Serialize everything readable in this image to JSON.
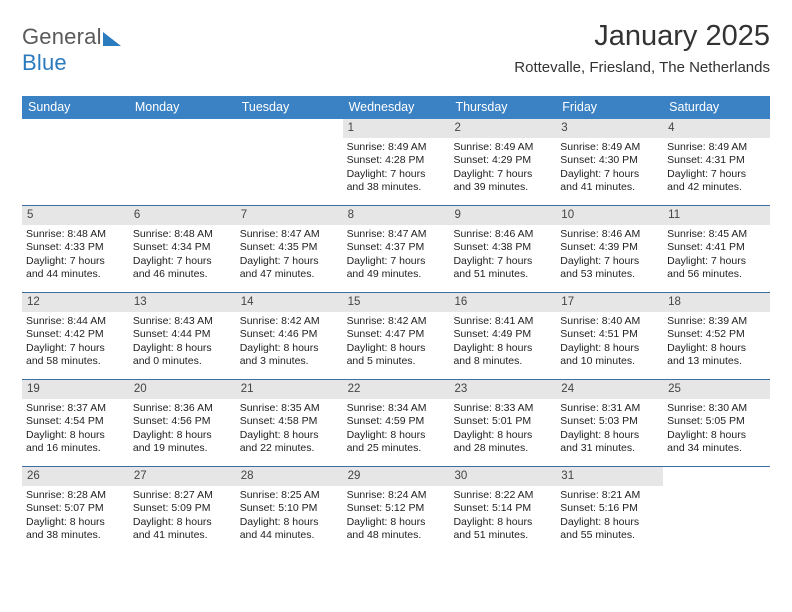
{
  "logo": {
    "part1": "General",
    "part2": "Blue"
  },
  "title": "January 2025",
  "location": "Rottevalle, Friesland, The Netherlands",
  "colors": {
    "header_bg": "#3b82c4",
    "header_text": "#ffffff",
    "daynum_bg": "#e6e6e6",
    "daynum_text": "#444444",
    "rule": "#3b6fa0",
    "body_text": "#222222",
    "logo_gray": "#5a5a5a",
    "logo_blue": "#2b7bbf"
  },
  "day_labels": [
    "Sunday",
    "Monday",
    "Tuesday",
    "Wednesday",
    "Thursday",
    "Friday",
    "Saturday"
  ],
  "first_weekday_index": 3,
  "days": [
    {
      "n": 1,
      "sunrise": "8:49 AM",
      "sunset": "4:28 PM",
      "dh": 7,
      "dm": 38
    },
    {
      "n": 2,
      "sunrise": "8:49 AM",
      "sunset": "4:29 PM",
      "dh": 7,
      "dm": 39
    },
    {
      "n": 3,
      "sunrise": "8:49 AM",
      "sunset": "4:30 PM",
      "dh": 7,
      "dm": 41
    },
    {
      "n": 4,
      "sunrise": "8:49 AM",
      "sunset": "4:31 PM",
      "dh": 7,
      "dm": 42
    },
    {
      "n": 5,
      "sunrise": "8:48 AM",
      "sunset": "4:33 PM",
      "dh": 7,
      "dm": 44
    },
    {
      "n": 6,
      "sunrise": "8:48 AM",
      "sunset": "4:34 PM",
      "dh": 7,
      "dm": 46
    },
    {
      "n": 7,
      "sunrise": "8:47 AM",
      "sunset": "4:35 PM",
      "dh": 7,
      "dm": 47
    },
    {
      "n": 8,
      "sunrise": "8:47 AM",
      "sunset": "4:37 PM",
      "dh": 7,
      "dm": 49
    },
    {
      "n": 9,
      "sunrise": "8:46 AM",
      "sunset": "4:38 PM",
      "dh": 7,
      "dm": 51
    },
    {
      "n": 10,
      "sunrise": "8:46 AM",
      "sunset": "4:39 PM",
      "dh": 7,
      "dm": 53
    },
    {
      "n": 11,
      "sunrise": "8:45 AM",
      "sunset": "4:41 PM",
      "dh": 7,
      "dm": 56
    },
    {
      "n": 12,
      "sunrise": "8:44 AM",
      "sunset": "4:42 PM",
      "dh": 7,
      "dm": 58
    },
    {
      "n": 13,
      "sunrise": "8:43 AM",
      "sunset": "4:44 PM",
      "dh": 8,
      "dm": 0
    },
    {
      "n": 14,
      "sunrise": "8:42 AM",
      "sunset": "4:46 PM",
      "dh": 8,
      "dm": 3
    },
    {
      "n": 15,
      "sunrise": "8:42 AM",
      "sunset": "4:47 PM",
      "dh": 8,
      "dm": 5
    },
    {
      "n": 16,
      "sunrise": "8:41 AM",
      "sunset": "4:49 PM",
      "dh": 8,
      "dm": 8
    },
    {
      "n": 17,
      "sunrise": "8:40 AM",
      "sunset": "4:51 PM",
      "dh": 8,
      "dm": 10
    },
    {
      "n": 18,
      "sunrise": "8:39 AM",
      "sunset": "4:52 PM",
      "dh": 8,
      "dm": 13
    },
    {
      "n": 19,
      "sunrise": "8:37 AM",
      "sunset": "4:54 PM",
      "dh": 8,
      "dm": 16
    },
    {
      "n": 20,
      "sunrise": "8:36 AM",
      "sunset": "4:56 PM",
      "dh": 8,
      "dm": 19
    },
    {
      "n": 21,
      "sunrise": "8:35 AM",
      "sunset": "4:58 PM",
      "dh": 8,
      "dm": 22
    },
    {
      "n": 22,
      "sunrise": "8:34 AM",
      "sunset": "4:59 PM",
      "dh": 8,
      "dm": 25
    },
    {
      "n": 23,
      "sunrise": "8:33 AM",
      "sunset": "5:01 PM",
      "dh": 8,
      "dm": 28
    },
    {
      "n": 24,
      "sunrise": "8:31 AM",
      "sunset": "5:03 PM",
      "dh": 8,
      "dm": 31
    },
    {
      "n": 25,
      "sunrise": "8:30 AM",
      "sunset": "5:05 PM",
      "dh": 8,
      "dm": 34
    },
    {
      "n": 26,
      "sunrise": "8:28 AM",
      "sunset": "5:07 PM",
      "dh": 8,
      "dm": 38
    },
    {
      "n": 27,
      "sunrise": "8:27 AM",
      "sunset": "5:09 PM",
      "dh": 8,
      "dm": 41
    },
    {
      "n": 28,
      "sunrise": "8:25 AM",
      "sunset": "5:10 PM",
      "dh": 8,
      "dm": 44
    },
    {
      "n": 29,
      "sunrise": "8:24 AM",
      "sunset": "5:12 PM",
      "dh": 8,
      "dm": 48
    },
    {
      "n": 30,
      "sunrise": "8:22 AM",
      "sunset": "5:14 PM",
      "dh": 8,
      "dm": 51
    },
    {
      "n": 31,
      "sunrise": "8:21 AM",
      "sunset": "5:16 PM",
      "dh": 8,
      "dm": 55
    }
  ],
  "labels": {
    "sunrise_prefix": "Sunrise: ",
    "sunset_prefix": "Sunset: ",
    "daylight_prefix": "Daylight: ",
    "hours_word": " hours",
    "and_word": "and ",
    "minutes_word": " minutes."
  }
}
